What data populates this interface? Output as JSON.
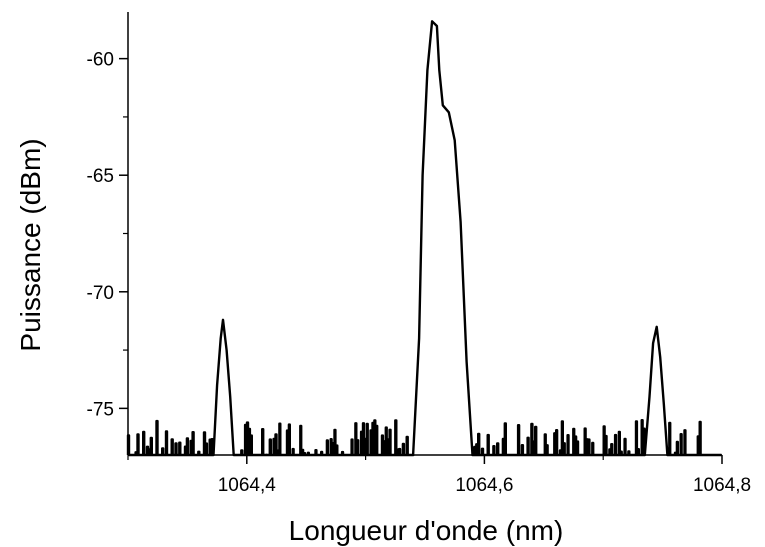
{
  "chart_data": {
    "type": "line",
    "xlabel": "Longueur d'onde (nm)",
    "ylabel": "Puissance (dBm)",
    "xlim": [
      1064.3,
      1064.8
    ],
    "ylim": [
      -77.0,
      -58.0
    ],
    "x_ticks": [
      1064.4,
      1064.6,
      1064.8
    ],
    "x_tick_labels": [
      "1064,4",
      "1064,6",
      "1064,8"
    ],
    "x_minor_ticks": [
      1064.3,
      1064.5,
      1064.7
    ],
    "y_ticks": [
      -60,
      -65,
      -70,
      -75
    ],
    "y_tick_labels": [
      "-60",
      "-65",
      "-70",
      "-75"
    ],
    "y_minor_ticks": [
      -62.5,
      -67.5,
      -72.5,
      -77.5
    ],
    "grid": false,
    "line_color": "#000000",
    "noise_floor": {
      "min": -77.0,
      "max": -75.5,
      "x_range": [
        1064.3,
        1064.8
      ]
    },
    "peaks": [
      {
        "x": [
          1064.372,
          1064.375,
          1064.378,
          1064.38,
          1064.383,
          1064.386,
          1064.389
        ],
        "y": [
          -77.0,
          -74.0,
          -72.0,
          -71.2,
          -72.5,
          -74.5,
          -77.0
        ]
      },
      {
        "x": [
          1064.54,
          1064.545,
          1064.548,
          1064.552,
          1064.556,
          1064.56,
          1064.562,
          1064.565,
          1064.57,
          1064.575,
          1064.58,
          1064.585,
          1064.59
        ],
        "y": [
          -77.0,
          -72.0,
          -65.0,
          -60.5,
          -58.4,
          -58.6,
          -60.5,
          -62.0,
          -62.3,
          -63.5,
          -67.0,
          -73.0,
          -77.0
        ]
      },
      {
        "x": [
          1064.735,
          1064.739,
          1064.742,
          1064.745,
          1064.748,
          1064.751,
          1064.754
        ],
        "y": [
          -77.0,
          -74.5,
          -72.2,
          -71.5,
          -72.8,
          -74.8,
          -77.0
        ]
      }
    ]
  }
}
